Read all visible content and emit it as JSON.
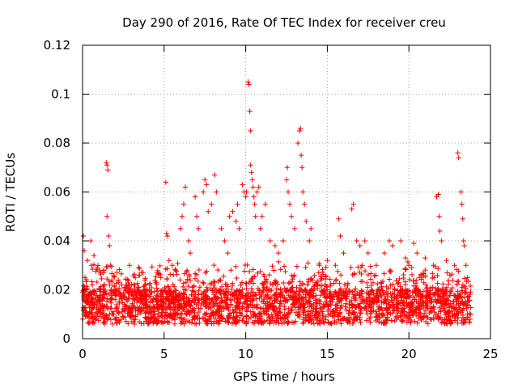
{
  "chart_data": {
    "type": "scatter",
    "title": "Day 290 of 2016, Rate Of TEC Index for receiver creu",
    "xlabel": "GPS time / hours",
    "ylabel": "ROTI / TECUs",
    "xlim": [
      0,
      25
    ],
    "ylim": [
      0,
      0.12
    ],
    "xticks": [
      0,
      5,
      10,
      15,
      20,
      25
    ],
    "xtick_labels": [
      "0",
      "5",
      "10",
      "15",
      "20",
      "25"
    ],
    "yticks": [
      0,
      0.02,
      0.04,
      0.06,
      0.08,
      0.1,
      0.12
    ],
    "ytick_labels": [
      "0",
      "0.02",
      "0.04",
      "0.06",
      "0.08",
      "0.1",
      "0.12"
    ],
    "grid": true,
    "marker": "+",
    "series": [
      {
        "name": "ROTI",
        "color": "#ff0000",
        "points": [
          [
            0.05,
            0.042
          ],
          [
            0.1,
            0.036
          ],
          [
            0.15,
            0.025
          ],
          [
            0.2,
            0.018
          ],
          [
            0.3,
            0.032
          ],
          [
            0.35,
            0.014
          ],
          [
            0.5,
            0.04
          ],
          [
            0.55,
            0.03
          ],
          [
            0.6,
            0.022
          ],
          [
            0.7,
            0.034
          ],
          [
            0.9,
            0.015
          ],
          [
            1.1,
            0.02
          ],
          [
            1.3,
            0.028
          ],
          [
            1.45,
            0.072
          ],
          [
            1.5,
            0.071
          ],
          [
            1.55,
            0.069
          ],
          [
            1.5,
            0.05
          ],
          [
            1.6,
            0.042
          ],
          [
            1.65,
            0.038
          ],
          [
            1.7,
            0.03
          ],
          [
            1.8,
            0.024
          ],
          [
            2.0,
            0.02
          ],
          [
            2.2,
            0.019
          ],
          [
            2.4,
            0.022
          ],
          [
            2.6,
            0.021
          ],
          [
            3.0,
            0.018
          ],
          [
            3.5,
            0.019
          ],
          [
            3.8,
            0.02
          ],
          [
            4.1,
            0.022
          ],
          [
            4.5,
            0.023
          ],
          [
            4.8,
            0.025
          ],
          [
            5.1,
            0.064
          ],
          [
            5.15,
            0.043
          ],
          [
            5.2,
            0.042
          ],
          [
            5.3,
            0.032
          ],
          [
            5.5,
            0.03
          ],
          [
            5.7,
            0.028
          ],
          [
            6.0,
            0.045
          ],
          [
            6.1,
            0.05
          ],
          [
            6.2,
            0.055
          ],
          [
            6.3,
            0.062
          ],
          [
            6.5,
            0.04
          ],
          [
            6.6,
            0.035
          ],
          [
            6.9,
            0.058
          ],
          [
            7.0,
            0.05
          ],
          [
            7.1,
            0.045
          ],
          [
            7.4,
            0.06
          ],
          [
            7.5,
            0.065
          ],
          [
            7.6,
            0.063
          ],
          [
            7.7,
            0.052
          ],
          [
            7.9,
            0.055
          ],
          [
            8.1,
            0.067
          ],
          [
            8.2,
            0.06
          ],
          [
            8.5,
            0.045
          ],
          [
            8.7,
            0.04
          ],
          [
            8.9,
            0.035
          ],
          [
            9.0,
            0.05
          ],
          [
            9.2,
            0.052
          ],
          [
            9.4,
            0.048
          ],
          [
            9.5,
            0.055
          ],
          [
            9.6,
            0.045
          ],
          [
            9.8,
            0.063
          ],
          [
            9.9,
            0.06
          ],
          [
            10.0,
            0.058
          ],
          [
            10.05,
            0.06
          ],
          [
            10.15,
            0.105
          ],
          [
            10.2,
            0.104
          ],
          [
            10.25,
            0.093
          ],
          [
            10.3,
            0.085
          ],
          [
            10.3,
            0.071
          ],
          [
            10.35,
            0.068
          ],
          [
            10.4,
            0.065
          ],
          [
            10.45,
            0.062
          ],
          [
            10.5,
            0.058
          ],
          [
            10.55,
            0.055
          ],
          [
            10.6,
            0.05
          ],
          [
            10.7,
            0.06
          ],
          [
            10.8,
            0.062
          ],
          [
            10.9,
            0.045
          ],
          [
            11.0,
            0.05
          ],
          [
            11.2,
            0.055
          ],
          [
            11.5,
            0.04
          ],
          [
            11.8,
            0.038
          ],
          [
            12.0,
            0.035
          ],
          [
            12.3,
            0.04
          ],
          [
            12.5,
            0.065
          ],
          [
            12.55,
            0.07
          ],
          [
            12.6,
            0.06
          ],
          [
            12.7,
            0.055
          ],
          [
            12.8,
            0.05
          ],
          [
            13.0,
            0.045
          ],
          [
            13.2,
            0.08
          ],
          [
            13.3,
            0.085
          ],
          [
            13.35,
            0.086
          ],
          [
            13.4,
            0.075
          ],
          [
            13.45,
            0.07
          ],
          [
            13.5,
            0.06
          ],
          [
            13.6,
            0.055
          ],
          [
            13.7,
            0.048
          ],
          [
            13.9,
            0.04
          ],
          [
            14.0,
            0.045
          ],
          [
            14.5,
            0.03
          ],
          [
            15.0,
            0.032
          ],
          [
            15.5,
            0.03
          ],
          [
            15.7,
            0.049
          ],
          [
            15.8,
            0.042
          ],
          [
            16.0,
            0.035
          ],
          [
            16.5,
            0.053
          ],
          [
            16.6,
            0.055
          ],
          [
            16.8,
            0.04
          ],
          [
            17.0,
            0.038
          ],
          [
            17.3,
            0.04
          ],
          [
            17.5,
            0.035
          ],
          [
            18.0,
            0.03
          ],
          [
            18.5,
            0.035
          ],
          [
            18.8,
            0.04
          ],
          [
            19.0,
            0.038
          ],
          [
            19.5,
            0.04
          ],
          [
            19.8,
            0.033
          ],
          [
            20.0,
            0.03
          ],
          [
            20.3,
            0.039
          ],
          [
            20.5,
            0.035
          ],
          [
            21.0,
            0.033
          ],
          [
            21.5,
            0.03
          ],
          [
            21.7,
            0.058
          ],
          [
            21.8,
            0.059
          ],
          [
            21.85,
            0.05
          ],
          [
            21.9,
            0.044
          ],
          [
            22.0,
            0.04
          ],
          [
            22.3,
            0.032
          ],
          [
            22.8,
            0.03
          ],
          [
            23.0,
            0.076
          ],
          [
            23.05,
            0.074
          ],
          [
            23.2,
            0.06
          ],
          [
            23.25,
            0.055
          ],
          [
            23.3,
            0.049
          ],
          [
            23.35,
            0.04
          ],
          [
            23.4,
            0.038
          ],
          [
            23.5,
            0.03
          ],
          [
            23.6,
            0.025
          ]
        ]
      }
    ]
  }
}
